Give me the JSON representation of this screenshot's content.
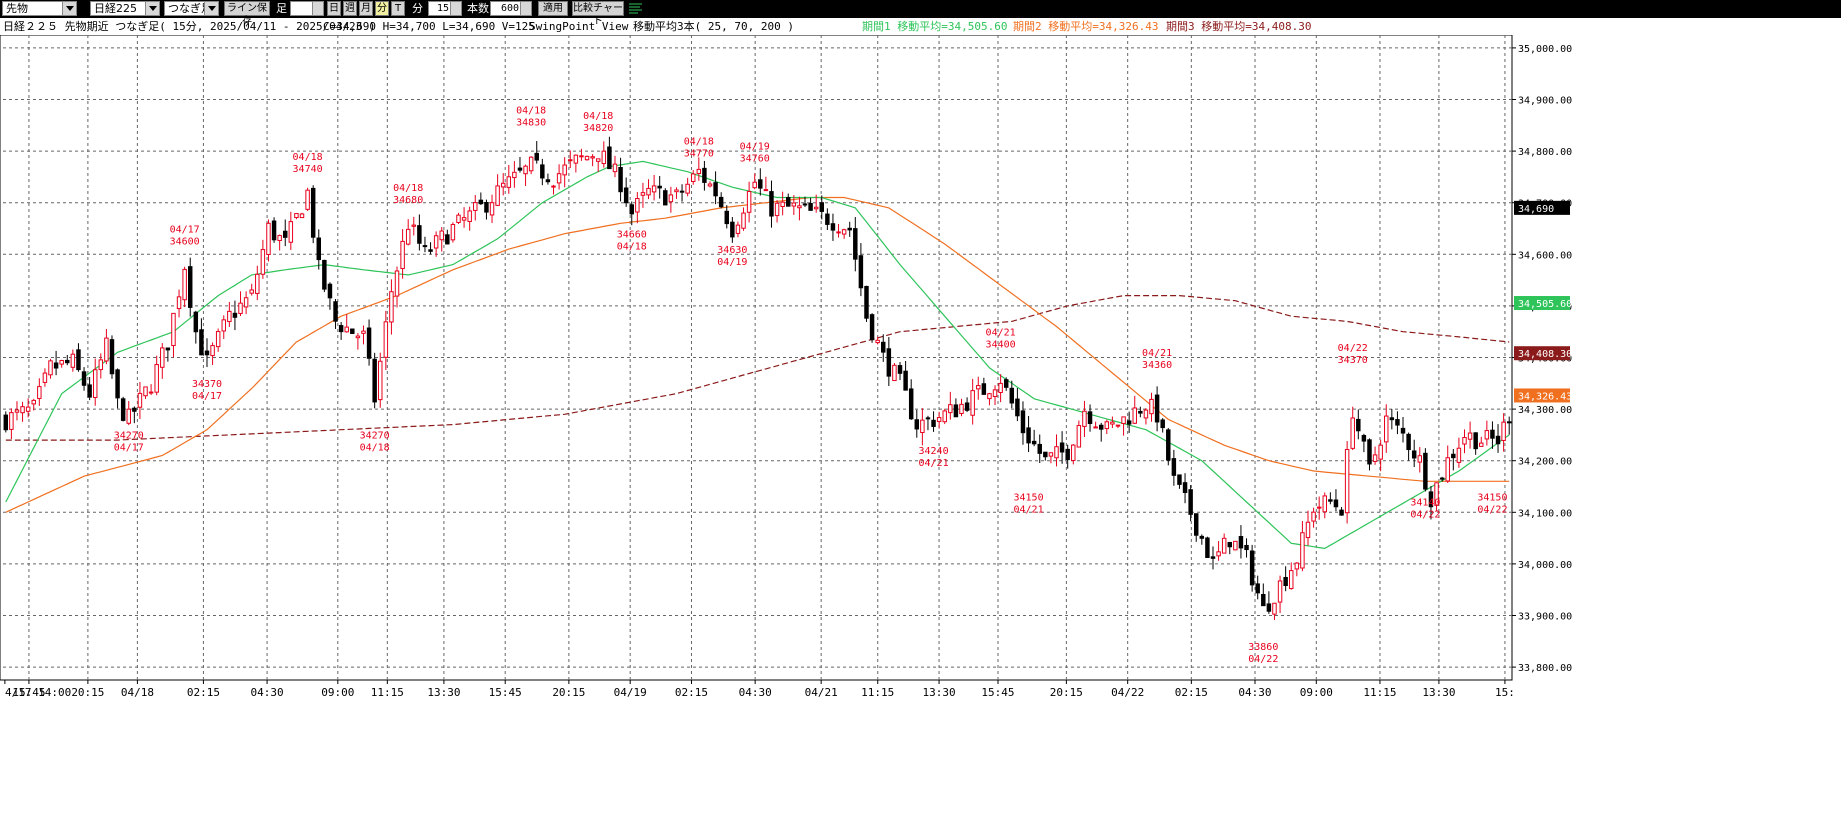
{
  "toolbar": {
    "market_select": "先物",
    "symbol_select": "日経225",
    "chart_type_select": "つなぎ足",
    "line_save_button": "ライン保存",
    "foot_label": "足",
    "day_button": "日",
    "week_button": "週",
    "month_button": "月",
    "minute_button": "分",
    "tick_button": "T",
    "minute_label": "分",
    "minute_value": "15",
    "count_label": "本数",
    "count_value": "600",
    "apply_button": "適用",
    "compare_button": "比較チャート"
  },
  "info": {
    "title": "日経２２５ 先物期近 つなぎ足( 15分, 2025/04/11 - 2025/04/23 )",
    "ohlcv": "C=34,690 H=34,700 L=34,690 V=125",
    "view": "SwingPoint View",
    "ma_label": "移動平均3本( 25, 70, 200 )",
    "ma1_text": "期間1 移動平均=34,505.60",
    "ma2_text": "期間2 移動平均=34,326.43",
    "ma3_text": "期間3 移動平均=34,408.30"
  },
  "colors": {
    "up": "#e8001c",
    "down": "#000000",
    "ma1": "#2ec45a",
    "ma2": "#f07020",
    "ma3": "#8b1a1a",
    "grid": "#666666",
    "swing": "#e8001c"
  },
  "chart_data": {
    "type": "candlestick",
    "interval": "15min",
    "ylim": [
      33775,
      35025
    ],
    "yticks": [
      "35,000.00",
      "34,900.00",
      "34,800.00",
      "34,700.00",
      "34,600.00",
      "34,500.00",
      "34,400.00",
      "34,300.00",
      "34,200.00",
      "34,100.00",
      "34,000.00",
      "33,900.00",
      "33,800.00"
    ],
    "xticks": [
      "4/17 14:00",
      "15:45",
      "20:15",
      "04/18",
      "02:15",
      "04:30",
      "09:00",
      "11:15",
      "13:30",
      "15:45",
      "20:15",
      "04/19",
      "02:15",
      "04:30",
      "04/21",
      "11:15",
      "13:30",
      "15:45",
      "20:15",
      "04/22",
      "02:15",
      "04:30",
      "09:00",
      "11:15",
      "13:30",
      "15:"
    ],
    "price_tags": [
      {
        "text": "34,690",
        "value": 34690,
        "color": "#000000"
      },
      {
        "text": "34,505.60",
        "value": 34505.6,
        "color": "#2ec45a"
      },
      {
        "text": "34,408.30",
        "value": 34408.3,
        "color": "#8b1a1a"
      },
      {
        "text": "34,326.43",
        "value": 34326.43,
        "color": "#f07020"
      }
    ],
    "swing_labels": [
      {
        "date": "04/17",
        "price": "34270",
        "index": 22,
        "pos": "below"
      },
      {
        "date": "04/17",
        "price": "34600",
        "index": 32,
        "pos": "above"
      },
      {
        "date": "04/17",
        "price": "34370",
        "index": 36,
        "pos": "below"
      },
      {
        "date": "04/18",
        "price": "34740",
        "index": 54,
        "pos": "above"
      },
      {
        "date": "04/18",
        "price": "34270",
        "index": 66,
        "pos": "below"
      },
      {
        "date": "04/18",
        "price": "34680",
        "index": 72,
        "pos": "above"
      },
      {
        "date": "04/18",
        "price": "34830",
        "index": 94,
        "pos": "above"
      },
      {
        "date": "04/18",
        "price": "34820",
        "index": 106,
        "pos": "above"
      },
      {
        "date": "04/18",
        "price": "34660",
        "index": 112,
        "pos": "below"
      },
      {
        "date": "04/18",
        "price": "34770",
        "index": 124,
        "pos": "above"
      },
      {
        "date": "04/19",
        "price": "34630",
        "index": 130,
        "pos": "below"
      },
      {
        "date": "04/19",
        "price": "34760",
        "index": 134,
        "pos": "above"
      },
      {
        "date": "04/21",
        "price": "34240",
        "index": 166,
        "pos": "below"
      },
      {
        "date": "04/21",
        "price": "34400",
        "index": 178,
        "pos": "above"
      },
      {
        "date": "04/21",
        "price": "34150",
        "index": 183,
        "pos": "below"
      },
      {
        "date": "04/21",
        "price": "34360",
        "index": 206,
        "pos": "above"
      },
      {
        "date": "04/22",
        "price": "33860",
        "index": 225,
        "pos": "below"
      },
      {
        "date": "04/22",
        "price": "34370",
        "index": 241,
        "pos": "above"
      },
      {
        "date": "04/22",
        "price": "34140",
        "index": 254,
        "pos": "below"
      },
      {
        "date": "04/22",
        "price": "34150",
        "index": 266,
        "pos": "below"
      }
    ],
    "close_anchors": [
      [
        0,
        34280
      ],
      [
        5,
        34300
      ],
      [
        8,
        34380
      ],
      [
        12,
        34390
      ],
      [
        15,
        34330
      ],
      [
        18,
        34420
      ],
      [
        20,
        34310
      ],
      [
        22,
        34280
      ],
      [
        26,
        34350
      ],
      [
        29,
        34430
      ],
      [
        32,
        34580
      ],
      [
        34,
        34450
      ],
      [
        36,
        34390
      ],
      [
        40,
        34480
      ],
      [
        44,
        34520
      ],
      [
        47,
        34650
      ],
      [
        50,
        34620
      ],
      [
        54,
        34720
      ],
      [
        56,
        34570
      ],
      [
        59,
        34470
      ],
      [
        62,
        34450
      ],
      [
        64,
        34440
      ],
      [
        66,
        34320
      ],
      [
        69,
        34530
      ],
      [
        72,
        34660
      ],
      [
        75,
        34600
      ],
      [
        80,
        34650
      ],
      [
        85,
        34690
      ],
      [
        89,
        34730
      ],
      [
        94,
        34770
      ],
      [
        98,
        34750
      ],
      [
        102,
        34780
      ],
      [
        106,
        34800
      ],
      [
        110,
        34740
      ],
      [
        112,
        34680
      ],
      [
        115,
        34720
      ],
      [
        120,
        34710
      ],
      [
        124,
        34760
      ],
      [
        127,
        34720
      ],
      [
        130,
        34650
      ],
      [
        134,
        34740
      ],
      [
        137,
        34690
      ],
      [
        141,
        34690
      ],
      [
        147,
        34670
      ],
      [
        151,
        34650
      ],
      [
        154,
        34480
      ],
      [
        157,
        34400
      ],
      [
        160,
        34350
      ],
      [
        163,
        34270
      ],
      [
        166,
        34280
      ],
      [
        170,
        34300
      ],
      [
        174,
        34330
      ],
      [
        178,
        34360
      ],
      [
        182,
        34260
      ],
      [
        186,
        34200
      ],
      [
        190,
        34220
      ],
      [
        193,
        34300
      ],
      [
        197,
        34260
      ],
      [
        200,
        34280
      ],
      [
        204,
        34310
      ],
      [
        206,
        34290
      ],
      [
        209,
        34160
      ],
      [
        212,
        34100
      ],
      [
        216,
        34000
      ],
      [
        219,
        34050
      ],
      [
        222,
        34010
      ],
      [
        225,
        33910
      ],
      [
        228,
        33960
      ],
      [
        231,
        34010
      ],
      [
        234,
        34110
      ],
      [
        237,
        34120
      ],
      [
        239,
        34110
      ],
      [
        241,
        34300
      ],
      [
        244,
        34180
      ],
      [
        247,
        34280
      ],
      [
        250,
        34250
      ],
      [
        253,
        34200
      ],
      [
        255,
        34130
      ],
      [
        258,
        34200
      ],
      [
        261,
        34250
      ],
      [
        264,
        34240
      ],
      [
        267,
        34240
      ],
      [
        269,
        34290
      ]
    ],
    "ma1_anchors": [
      [
        0,
        34120
      ],
      [
        10,
        34330
      ],
      [
        20,
        34410
      ],
      [
        30,
        34450
      ],
      [
        38,
        34520
      ],
      [
        44,
        34560
      ],
      [
        50,
        34570
      ],
      [
        57,
        34580
      ],
      [
        64,
        34570
      ],
      [
        72,
        34560
      ],
      [
        80,
        34580
      ],
      [
        88,
        34630
      ],
      [
        96,
        34700
      ],
      [
        104,
        34750
      ],
      [
        108,
        34770
      ],
      [
        114,
        34780
      ],
      [
        122,
        34760
      ],
      [
        130,
        34730
      ],
      [
        138,
        34710
      ],
      [
        146,
        34710
      ],
      [
        152,
        34690
      ],
      [
        160,
        34580
      ],
      [
        168,
        34480
      ],
      [
        176,
        34380
      ],
      [
        184,
        34320
      ],
      [
        194,
        34290
      ],
      [
        204,
        34260
      ],
      [
        214,
        34200
      ],
      [
        222,
        34120
      ],
      [
        230,
        34040
      ],
      [
        236,
        34030
      ],
      [
        244,
        34080
      ],
      [
        252,
        34130
      ],
      [
        260,
        34180
      ],
      [
        269,
        34250
      ]
    ],
    "ma2_anchors": [
      [
        0,
        34100
      ],
      [
        14,
        34170
      ],
      [
        28,
        34210
      ],
      [
        36,
        34260
      ],
      [
        44,
        34340
      ],
      [
        52,
        34430
      ],
      [
        60,
        34480
      ],
      [
        70,
        34520
      ],
      [
        80,
        34570
      ],
      [
        90,
        34610
      ],
      [
        100,
        34640
      ],
      [
        110,
        34660
      ],
      [
        118,
        34670
      ],
      [
        128,
        34690
      ],
      [
        136,
        34700
      ],
      [
        144,
        34710
      ],
      [
        150,
        34710
      ],
      [
        158,
        34690
      ],
      [
        168,
        34620
      ],
      [
        178,
        34540
      ],
      [
        188,
        34460
      ],
      [
        198,
        34370
      ],
      [
        208,
        34280
      ],
      [
        218,
        34230
      ],
      [
        226,
        34200
      ],
      [
        234,
        34180
      ],
      [
        244,
        34170
      ],
      [
        254,
        34160
      ],
      [
        262,
        34160
      ],
      [
        269,
        34160
      ]
    ],
    "ma3_anchors": [
      [
        0,
        34240
      ],
      [
        20,
        34240
      ],
      [
        40,
        34250
      ],
      [
        60,
        34260
      ],
      [
        80,
        34270
      ],
      [
        100,
        34290
      ],
      [
        120,
        34330
      ],
      [
        140,
        34390
      ],
      [
        150,
        34420
      ],
      [
        160,
        34450
      ],
      [
        170,
        34460
      ],
      [
        180,
        34470
      ],
      [
        190,
        34500
      ],
      [
        200,
        34520
      ],
      [
        210,
        34520
      ],
      [
        220,
        34510
      ],
      [
        230,
        34480
      ],
      [
        240,
        34470
      ],
      [
        250,
        34450
      ],
      [
        260,
        34440
      ],
      [
        269,
        34430
      ]
    ]
  }
}
